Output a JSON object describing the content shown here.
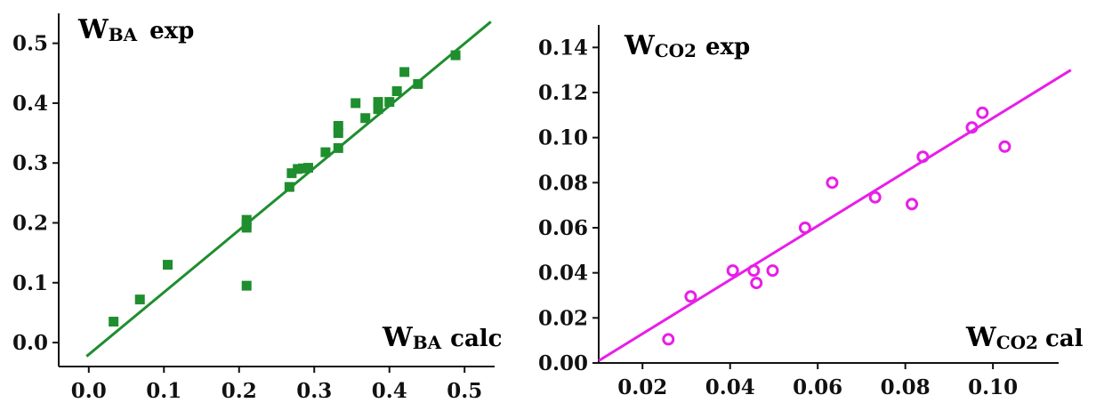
{
  "chart_data": [
    {
      "type": "scatter",
      "title": "",
      "y_label": {
        "main": "W",
        "sub": "BA",
        "tail": "exp"
      },
      "x_label": {
        "main": "W",
        "sub": "BA",
        "tail": "calc"
      },
      "xlim": [
        -0.04,
        0.54
      ],
      "ylim": [
        -0.04,
        0.55
      ],
      "x_ticks": [
        0.0,
        0.1,
        0.2,
        0.3,
        0.4,
        0.5
      ],
      "x_tick_labels": [
        "0.0",
        "0.1",
        "0.2",
        "0.3",
        "0.4",
        "0.5"
      ],
      "y_ticks": [
        0.0,
        0.1,
        0.2,
        0.3,
        0.4,
        0.5
      ],
      "y_tick_labels": [
        "0.0",
        "0.1",
        "0.2",
        "0.3",
        "0.4",
        "0.5"
      ],
      "marker": "square",
      "color": "#1e8e2e",
      "points": [
        [
          0.033,
          0.035
        ],
        [
          0.068,
          0.072
        ],
        [
          0.105,
          0.13
        ],
        [
          0.21,
          0.095
        ],
        [
          0.21,
          0.192
        ],
        [
          0.21,
          0.198
        ],
        [
          0.21,
          0.205
        ],
        [
          0.267,
          0.26
        ],
        [
          0.27,
          0.283
        ],
        [
          0.278,
          0.29
        ],
        [
          0.285,
          0.291
        ],
        [
          0.292,
          0.292
        ],
        [
          0.315,
          0.318
        ],
        [
          0.332,
          0.325
        ],
        [
          0.332,
          0.35
        ],
        [
          0.332,
          0.362
        ],
        [
          0.355,
          0.4
        ],
        [
          0.368,
          0.375
        ],
        [
          0.385,
          0.39
        ],
        [
          0.385,
          0.402
        ],
        [
          0.4,
          0.402
        ],
        [
          0.41,
          0.42
        ],
        [
          0.42,
          0.452
        ],
        [
          0.438,
          0.432
        ],
        [
          0.488,
          0.48
        ]
      ],
      "fit_line": [
        [
          -0.003,
          -0.023
        ],
        [
          0.535,
          0.536
        ]
      ]
    },
    {
      "type": "scatter",
      "title": "",
      "y_label": {
        "main": "W",
        "sub": "CO2",
        "tail": "exp"
      },
      "x_label": {
        "main": "W",
        "sub": "CO2",
        "tail": "cal"
      },
      "xlim": [
        0.01,
        0.115
      ],
      "ylim": [
        0.0,
        0.15
      ],
      "x_ticks": [
        0.02,
        0.04,
        0.06,
        0.08,
        0.1
      ],
      "x_tick_labels": [
        "0.02",
        "0.04",
        "0.06",
        "0.08",
        "0.10"
      ],
      "y_ticks": [
        0.0,
        0.02,
        0.04,
        0.06,
        0.08,
        0.1,
        0.12,
        0.14
      ],
      "y_tick_labels": [
        "0.00",
        "0.02",
        "0.04",
        "0.06",
        "0.08",
        "0.10",
        "0.12",
        "0.14"
      ],
      "marker": "open-circle",
      "color": "#e81ee8",
      "points": [
        [
          0.0259,
          0.0105
        ],
        [
          0.031,
          0.0295
        ],
        [
          0.0406,
          0.041
        ],
        [
          0.0454,
          0.041
        ],
        [
          0.046,
          0.0355
        ],
        [
          0.0497,
          0.041
        ],
        [
          0.0571,
          0.06
        ],
        [
          0.0633,
          0.08
        ],
        [
          0.0731,
          0.0735
        ],
        [
          0.0815,
          0.0705
        ],
        [
          0.084,
          0.0915
        ],
        [
          0.0952,
          0.1045
        ],
        [
          0.0976,
          0.111
        ],
        [
          0.1027,
          0.096
        ]
      ],
      "fit_line": [
        [
          0.01,
          0.001
        ],
        [
          0.1178,
          0.13
        ]
      ]
    }
  ]
}
